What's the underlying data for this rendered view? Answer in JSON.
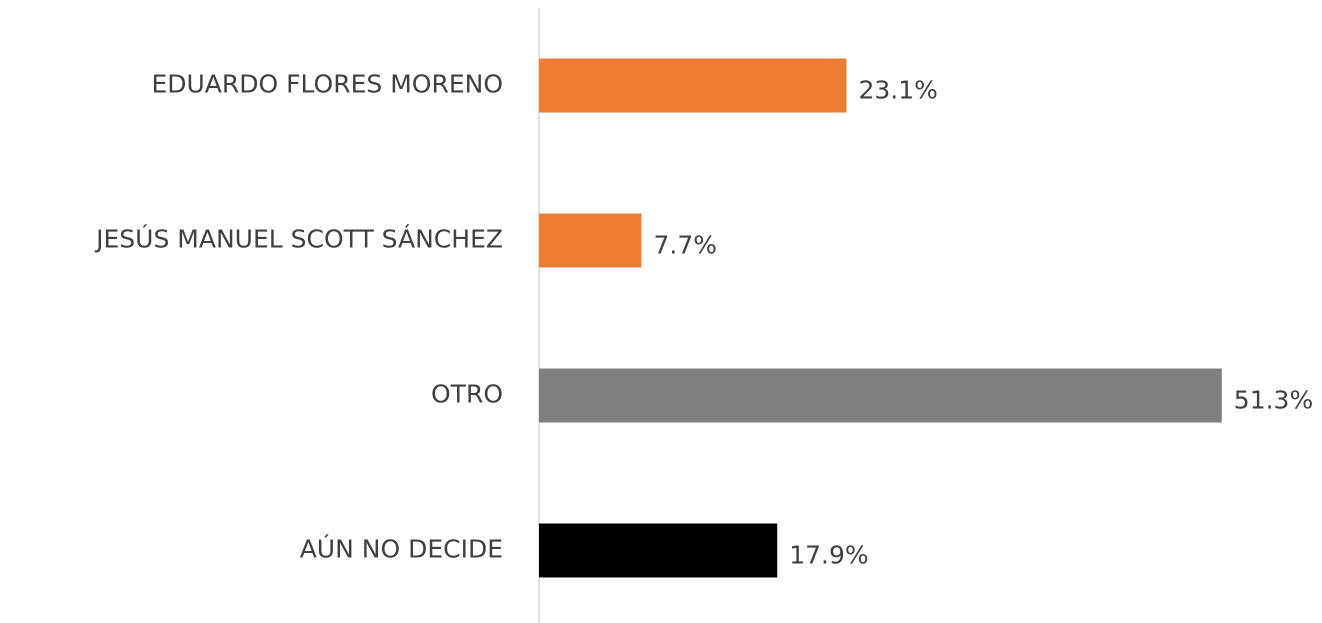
{
  "chart_data": {
    "type": "barh",
    "categories": [
      "EDUARDO FLORES MORENO",
      "JESÚS MANUEL SCOTT SÁNCHEZ",
      "OTRO",
      "AÚN NO DECIDE"
    ],
    "values": [
      23.1,
      7.7,
      51.3,
      17.9
    ],
    "value_labels": [
      "23.1%",
      "7.7%",
      "51.3%",
      "17.9%"
    ],
    "colors": [
      "#ed7d31",
      "#ed7d31",
      "#7f7f7f",
      "#000000"
    ],
    "xlim": [
      0,
      55
    ]
  }
}
